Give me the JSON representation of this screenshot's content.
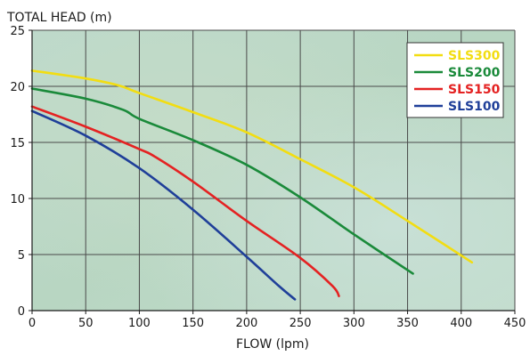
{
  "chart_data": {
    "type": "line",
    "ylabel": "TOTAL HEAD (m)",
    "xlabel": "FLOW (lpm)",
    "xlim": [
      0,
      450
    ],
    "ylim": [
      0,
      25
    ],
    "xticks": [
      0,
      50,
      100,
      150,
      200,
      250,
      300,
      350,
      400,
      450
    ],
    "yticks": [
      0,
      5,
      10,
      15,
      20,
      25
    ],
    "grid": true,
    "legend_position": "top-right",
    "series": [
      {
        "name": "SLS300",
        "color": "#f2dd12",
        "x": [
          0,
          50,
          80,
          100,
          150,
          200,
          250,
          300,
          350,
          410
        ],
        "y": [
          21.4,
          20.7,
          20.1,
          19.4,
          17.7,
          15.9,
          13.5,
          11.0,
          8.0,
          4.3
        ]
      },
      {
        "name": "SLS200",
        "color": "#1a8a3a",
        "x": [
          0,
          50,
          85,
          100,
          150,
          200,
          250,
          300,
          355
        ],
        "y": [
          19.8,
          18.9,
          17.9,
          17.1,
          15.2,
          13.0,
          10.1,
          6.8,
          3.3
        ]
      },
      {
        "name": "SLS150",
        "color": "#e42222",
        "x": [
          0,
          50,
          100,
          115,
          150,
          200,
          250,
          280,
          286
        ],
        "y": [
          18.2,
          16.4,
          14.4,
          13.7,
          11.5,
          8.0,
          4.7,
          2.2,
          1.3
        ]
      },
      {
        "name": "SLS100",
        "color": "#1f3f99",
        "x": [
          0,
          50,
          100,
          150,
          200,
          230,
          245
        ],
        "y": [
          17.8,
          15.6,
          12.7,
          9.0,
          4.8,
          2.2,
          1.0
        ]
      }
    ]
  }
}
